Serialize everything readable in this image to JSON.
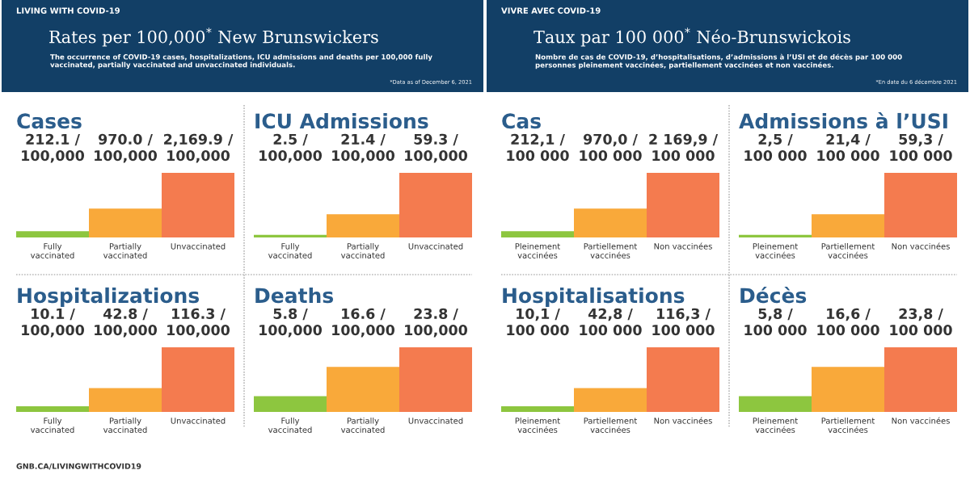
{
  "chart_data": [
    {
      "type": "bar",
      "title": "Cases",
      "categories": [
        "Fully\nvaccinated",
        "Partially\nvaccinated",
        "Unvaccinated"
      ],
      "values": [
        212.1,
        970.0,
        2169.9
      ],
      "colors": [
        "#8dc63f",
        "#f9a93a",
        "#f47b4f"
      ],
      "value_labels": [
        "212.1 /\n100,000",
        "970.0 /\n100,000",
        "2,169.9 /\n100,000"
      ],
      "annotations": [
        "LIVING WITH COVID-19",
        "Rates per 100,000$^{*}$ New Brunswickers",
        "The occurrence of COVID-19 cases, hospitalizations, ICU admissions and deaths per 100,000 fully\nvaccinated, partially vaccinated and unvaccinated individuals.",
        "*Data as of December 6, 2021"
      ]
    },
    {
      "type": "bar",
      "title": "ICU Admissions",
      "categories": [
        "Fully\nvaccinated",
        "Partially\nvaccinated",
        "Unvaccinated"
      ],
      "values": [
        2.5,
        21.4,
        59.3
      ],
      "colors": [
        "#8dc63f",
        "#f9a93a",
        "#f47b4f"
      ],
      "value_labels": [
        "2.5 /\n100,000",
        "21.4 /\n100,000",
        "59.3 /\n100,000"
      ]
    },
    {
      "type": "bar",
      "title": "Hospitalizations",
      "categories": [
        "Fully\nvaccinated",
        "Partially\nvaccinated",
        "Unvaccinated"
      ],
      "values": [
        10.1,
        42.8,
        116.3
      ],
      "colors": [
        "#8dc63f",
        "#f9a93a",
        "#f47b4f"
      ],
      "value_labels": [
        "10.1 /\n100,000",
        "42.8 /\n100,000",
        "116.3 /\n100,000"
      ],
      "annotations": [
        "GNB.CA/LIVINGWITHCOVID19"
      ]
    },
    {
      "type": "bar",
      "title": "Deaths",
      "categories": [
        "Fully\nvaccinated",
        "Partially\nvaccinated",
        "Unvaccinated"
      ],
      "values": [
        5.8,
        16.6,
        23.8
      ],
      "colors": [
        "#8dc63f",
        "#f9a93a",
        "#f47b4f"
      ],
      "value_labels": [
        "5.8 /\n100,000",
        "16.6 /\n100,000",
        "23.8 /\n100,000"
      ]
    },
    {
      "type": "bar",
      "title": "Cas",
      "categories": [
        "Pleinement\nvaccinées",
        "Partiellement\nvaccinées",
        "Non vaccinées"
      ],
      "values": [
        212.1,
        970.0,
        2169.9
      ],
      "colors": [
        "#8dc63f",
        "#f9a93a",
        "#f47b4f"
      ],
      "value_labels": [
        "212,1 /\n100 000",
        "970,0 /\n100 000",
        "2 169,9 /\n100 000"
      ],
      "annotations": [
        "VIVRE AVEC COVID-19",
        "Taux par 100 000$^{*}$ Néo-Brunswickois",
        "Nombre de cas de COVID-19, d’hospitalisations, d’admissions à l’USI et de décès par 100 000\npersonnes pleinement vaccinées, partiellement vaccinées et non vaccinées.",
        "*En date du 6 décembre 2021"
      ]
    },
    {
      "type": "bar",
      "title": "Admissions à l’USI",
      "categories": [
        "Pleinement\nvaccinées",
        "Partiellement\nvaccinées",
        "Non vaccinées"
      ],
      "values": [
        2.5,
        21.4,
        59.3
      ],
      "colors": [
        "#8dc63f",
        "#f9a93a",
        "#f47b4f"
      ],
      "value_labels": [
        "2,5 /\n100 000",
        "21,4 /\n100 000",
        "59,3 /\n100 000"
      ]
    },
    {
      "type": "bar",
      "title": "Hospitalisations",
      "categories": [
        "Pleinement\nvaccinées",
        "Partiellement\nvaccinées",
        "Non vaccinées"
      ],
      "values": [
        10.1,
        42.8,
        116.3
      ],
      "colors": [
        "#8dc63f",
        "#f9a93a",
        "#f47b4f"
      ],
      "value_labels": [
        "10,1 /\n100 000",
        "42,8 /\n100 000",
        "116,3 /\n100 000"
      ]
    },
    {
      "type": "bar",
      "title": "Décès",
      "categories": [
        "Pleinement\nvaccinées",
        "Partiellement\nvaccinées",
        "Non vaccinées"
      ],
      "values": [
        5.8,
        16.6,
        23.8
      ],
      "colors": [
        "#8dc63f",
        "#f9a93a",
        "#f47b4f"
      ],
      "value_labels": [
        "5,8 /\n100 000",
        "16,6 /\n100 000",
        "23,8 /\n100 000"
      ]
    }
  ]
}
